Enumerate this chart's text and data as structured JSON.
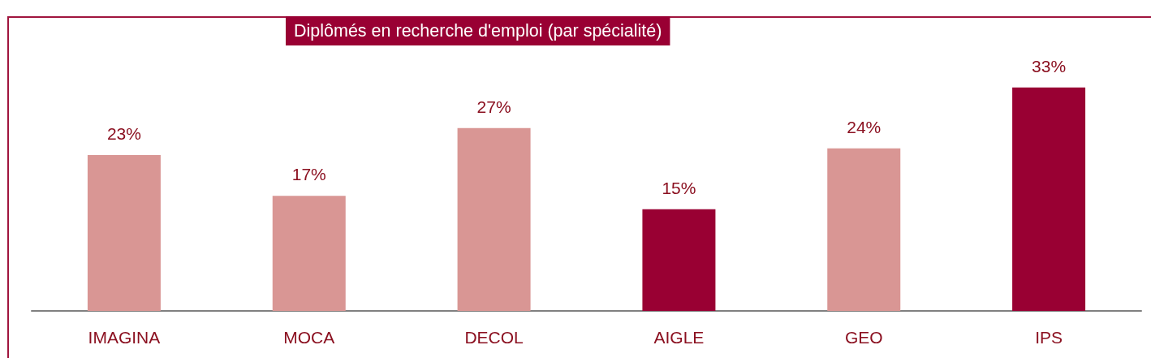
{
  "chart_data": {
    "type": "bar",
    "title": "Diplômés en recherche d'emploi (par spécialité)",
    "categories": [
      "IMAGINA",
      "MOCA",
      "DECOL",
      "AIGLE",
      "GEO",
      "IPS"
    ],
    "values": [
      23,
      17,
      27,
      15,
      24,
      33
    ],
    "value_labels": [
      "23%",
      "17%",
      "27%",
      "15%",
      "24%",
      "33%"
    ],
    "colors": [
      "#d99694",
      "#d99694",
      "#d99694",
      "#990033",
      "#d99694",
      "#990033"
    ]
  }
}
